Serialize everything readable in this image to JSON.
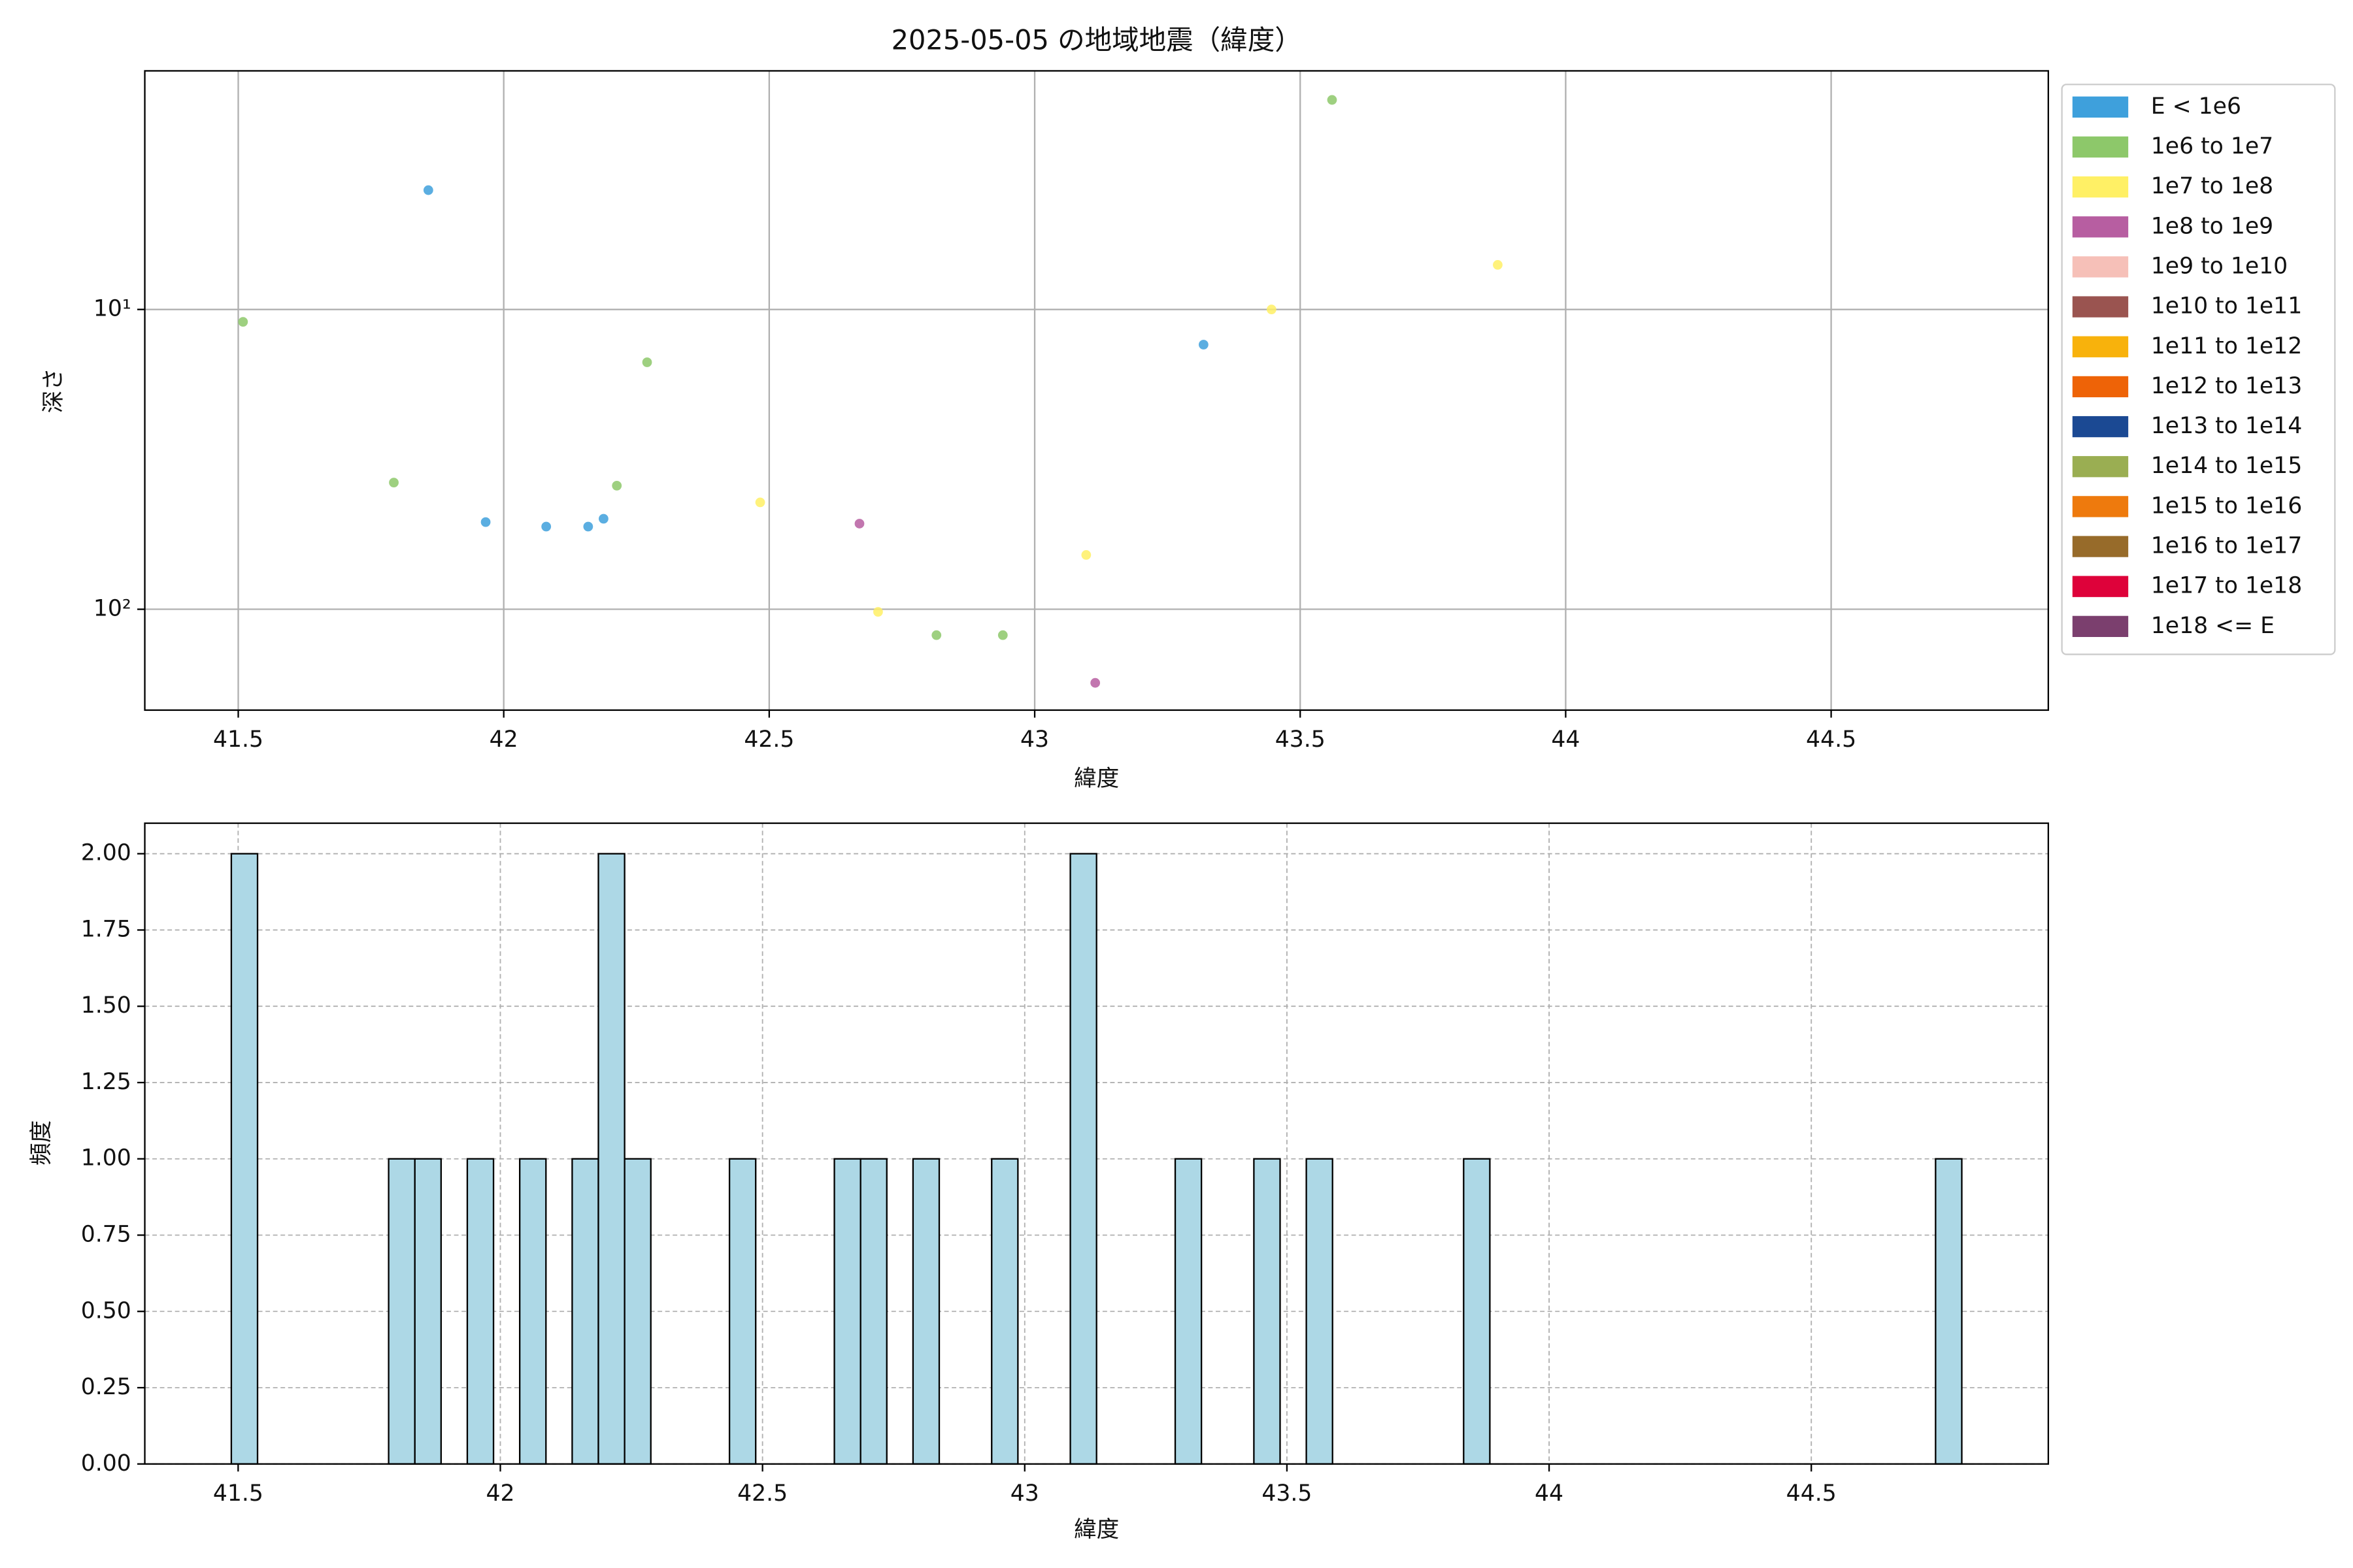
{
  "chart_data": [
    {
      "type": "scatter",
      "title": "2025-05-05 の地域地震（緯度）",
      "x_label": "緯度",
      "y_label": "深さ",
      "xlim": [
        41.324,
        44.909
      ],
      "xticks": [
        41.5,
        42.0,
        42.5,
        43.0,
        43.5,
        44.0,
        44.5
      ],
      "ylim": [
        1.6,
        217
      ],
      "y_log": true,
      "y_inverted": true,
      "yticks": [
        {
          "value": 10,
          "label": "10¹"
        },
        {
          "value": 100,
          "label": "10²"
        }
      ],
      "grid": true,
      "legend": "outside-upper-right",
      "series": [
        {
          "name": "E < 1e6",
          "color": "#3ea0dc",
          "x": [
            41.858,
            41.966,
            42.08,
            42.159,
            42.188,
            43.318
          ],
          "values": [
            4.0,
            51.2,
            53.0,
            53.0,
            49.9,
            13.1
          ]
        },
        {
          "name": "1e6 to 1e7",
          "color": "#8dc86a",
          "x": [
            41.509,
            41.793,
            42.213,
            42.27,
            42.815,
            42.94,
            43.56
          ],
          "values": [
            11.0,
            37.8,
            38.7,
            15.0,
            122,
            122,
            2.0
          ]
        },
        {
          "name": "1e7 to 1e8",
          "color": "#fff065",
          "x": [
            42.483,
            42.705,
            43.097,
            43.446,
            43.872
          ],
          "values": [
            44.0,
            102,
            65.9,
            10,
            7.1
          ]
        },
        {
          "name": "1e8 to 1e9",
          "color": "#b75ea1",
          "x": [
            42.67,
            43.114
          ],
          "values": [
            51.8,
            176
          ]
        },
        {
          "name": "1e9 to 1e10",
          "color": "#f6c0b8",
          "x": [],
          "values": []
        },
        {
          "name": "1e10 to 1e11",
          "color": "#9a5450",
          "x": [],
          "values": []
        },
        {
          "name": "1e11 to 1e12",
          "color": "#f8b20c",
          "x": [],
          "values": []
        },
        {
          "name": "1e12 to 1e13",
          "color": "#ee6307",
          "x": [],
          "values": []
        },
        {
          "name": "1e13 to 1e14",
          "color": "#1b4993",
          "x": [],
          "values": []
        },
        {
          "name": "1e14 to 1e15",
          "color": "#9aae52",
          "x": [],
          "values": []
        },
        {
          "name": "1e15 to 1e16",
          "color": "#ee7a0d",
          "x": [],
          "values": []
        },
        {
          "name": "1e16 to 1e17",
          "color": "#976b2a",
          "x": [],
          "values": []
        },
        {
          "name": "1e17 to 1e18",
          "color": "#de023a",
          "x": [],
          "values": []
        },
        {
          "name": "1e18 <= E",
          "color": "#7b3f6e",
          "x": [],
          "values": []
        }
      ]
    },
    {
      "type": "histogram",
      "x_label": "緯度",
      "y_label": "頻度",
      "color": "#add8e6",
      "xlim": [
        41.322,
        44.952
      ],
      "xticks": [
        41.5,
        42.0,
        42.5,
        43.0,
        43.5,
        44.0,
        44.5
      ],
      "ylim": [
        0,
        2.1
      ],
      "grid": true,
      "yticks": [
        {
          "value": 0,
          "label": "0.00"
        },
        {
          "value": 0.25,
          "label": "0.25"
        },
        {
          "value": 0.5,
          "label": "0.50"
        },
        {
          "value": 0.75,
          "label": "0.75"
        },
        {
          "value": 1,
          "label": "1.00"
        },
        {
          "value": 1.25,
          "label": "1.25"
        },
        {
          "value": 1.5,
          "label": "1.50"
        },
        {
          "value": 1.75,
          "label": "1.75"
        },
        {
          "value": 2,
          "label": "2.00"
        }
      ],
      "bins": [
        41.487,
        41.537,
        41.587,
        41.637,
        41.687,
        41.737,
        41.787,
        41.837,
        41.887,
        41.937,
        41.987,
        42.037,
        42.087,
        42.137,
        42.187,
        42.237,
        42.287,
        42.337,
        42.387,
        42.437,
        42.487,
        42.537,
        42.587,
        42.637,
        42.687,
        42.737,
        42.787,
        42.837,
        42.887,
        42.937,
        42.987,
        43.037,
        43.087,
        43.137,
        43.187,
        43.237,
        43.287,
        43.337,
        43.387,
        43.437,
        43.487,
        43.537,
        43.587,
        43.637,
        43.687,
        43.737,
        43.787,
        43.837,
        43.887,
        43.937,
        43.987,
        44.037,
        44.087,
        44.137,
        44.187,
        44.237,
        44.287,
        44.337,
        44.387,
        44.437,
        44.487,
        44.537,
        44.587,
        44.637,
        44.687,
        44.737,
        44.787
      ],
      "values": [
        2,
        0,
        0,
        0,
        0,
        0,
        1,
        1,
        0,
        1,
        0,
        1,
        0,
        1,
        2,
        1,
        0,
        0,
        0,
        1,
        0,
        0,
        0,
        1,
        1,
        0,
        1,
        0,
        0,
        1,
        0,
        0,
        2,
        0,
        0,
        0,
        1,
        0,
        0,
        1,
        0,
        1,
        0,
        0,
        0,
        0,
        0,
        1,
        0,
        0,
        0,
        0,
        0,
        0,
        0,
        0,
        0,
        0,
        0,
        0,
        0,
        0,
        0,
        0,
        0,
        1
      ]
    }
  ]
}
